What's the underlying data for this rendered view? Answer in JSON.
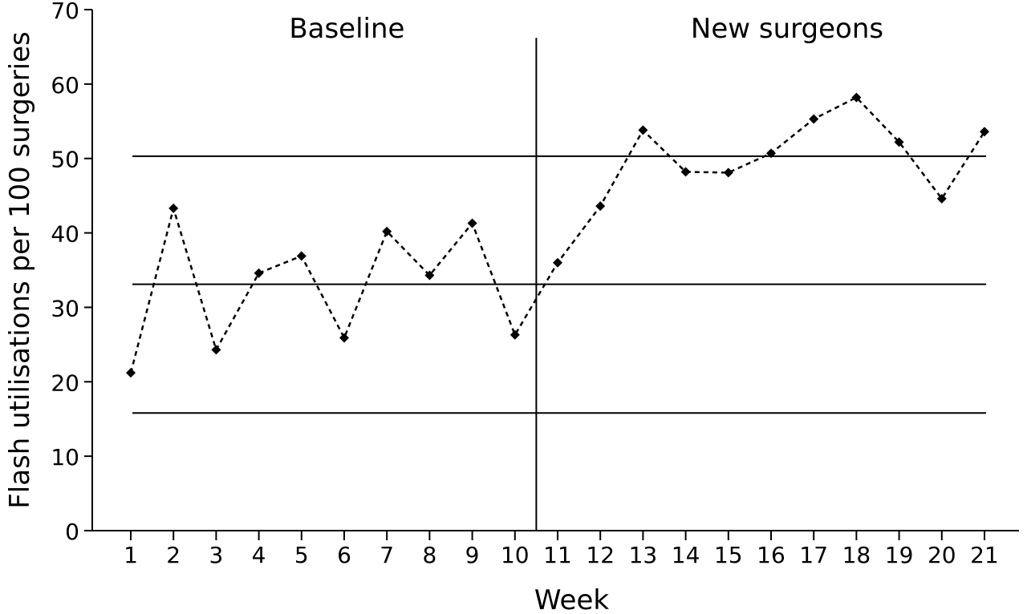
{
  "chart_data": {
    "type": "line",
    "xlabel": "Week",
    "ylabel": "Flash utilisations per 100 surgeries",
    "ylim": [
      0,
      70
    ],
    "yticks": [
      0,
      10,
      20,
      30,
      40,
      50,
      60,
      70
    ],
    "x": [
      1,
      2,
      3,
      4,
      5,
      6,
      7,
      8,
      9,
      10,
      11,
      12,
      13,
      14,
      15,
      16,
      17,
      18,
      19,
      20,
      21
    ],
    "series": [
      {
        "values": [
          21.2,
          43.3,
          24.3,
          34.6,
          36.9,
          25.9,
          40.2,
          34.3,
          41.3,
          26.3,
          36.0,
          43.6,
          53.8,
          48.2,
          48.1,
          50.7,
          55.3,
          58.2,
          52.2,
          44.6,
          53.6
        ],
        "line_style": "dashed",
        "marker": "diamond",
        "color": "#000000"
      }
    ],
    "reference_lines": [
      50.3,
      33.1,
      15.8
    ],
    "phase_divider_after_week": 10,
    "phases": [
      {
        "label": "Baseline",
        "weeks": [
          1,
          10
        ]
      },
      {
        "label": "New surgeons",
        "weeks": [
          11,
          21
        ]
      }
    ],
    "grid": false,
    "legend": "none"
  }
}
